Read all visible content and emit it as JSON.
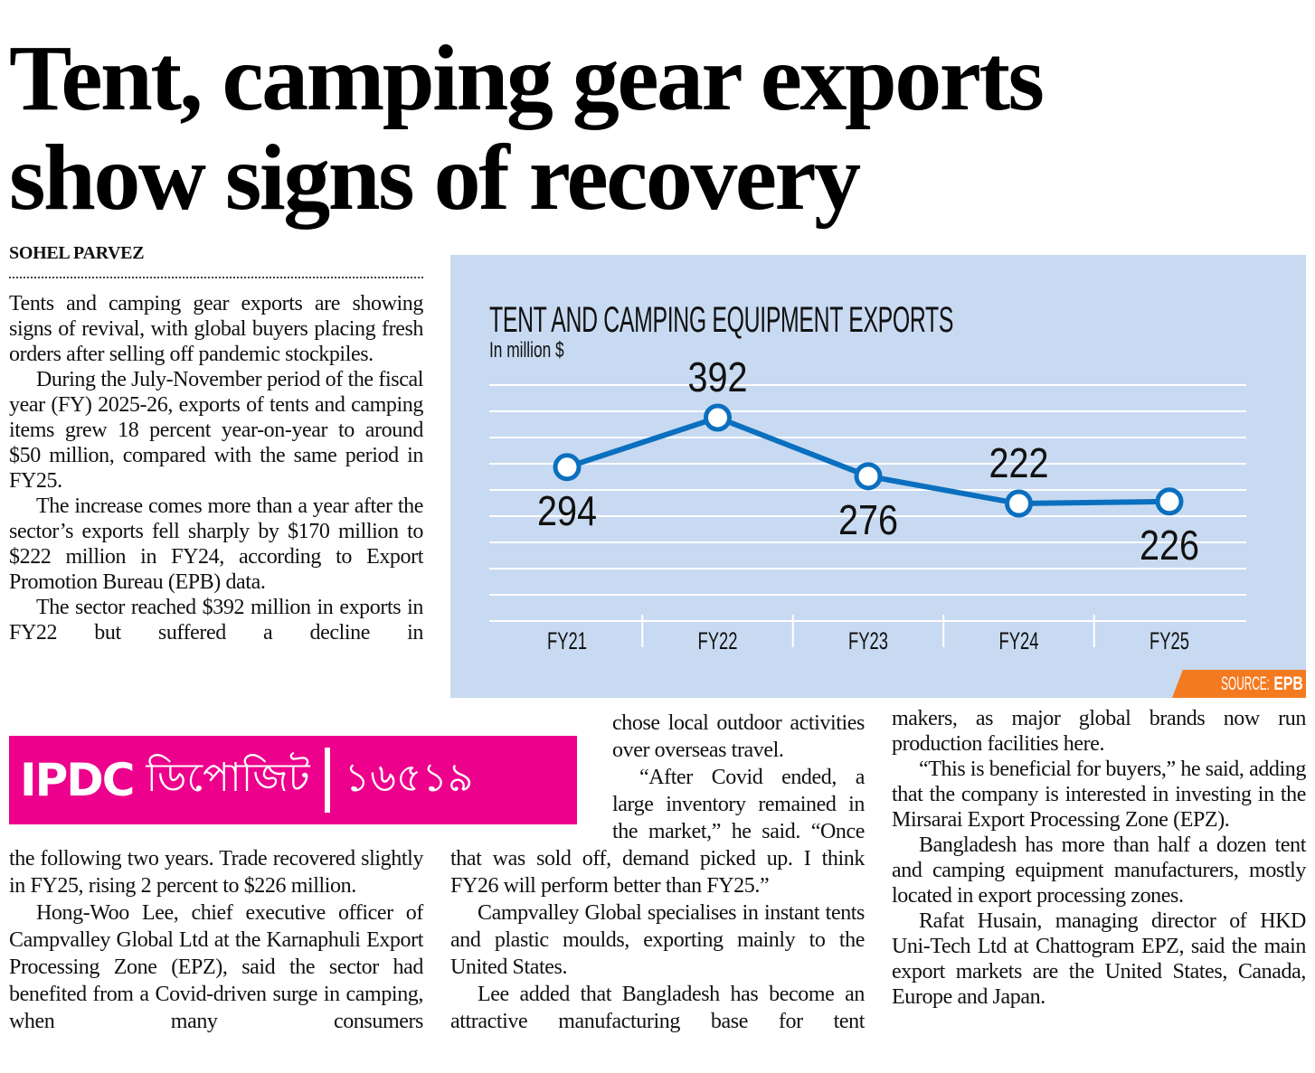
{
  "headline": {
    "line1": "Tent, camping gear exports",
    "line2": "show signs of recovery"
  },
  "byline": "SOHEL PARVEZ",
  "article": {
    "col1_top": [
      "Tents and camping gear exports are showing signs of revival, with global buyers placing fresh orders after selling off pandemic stockpiles.",
      "During the July-November period of the fiscal year (FY) 2025-26, exports of tents and camping items grew 18 percent year-on-year to around $50 million, compared with the same period in FY25.",
      "The increase comes more than a year after the sector’s exports fell sharply by $170 million to $222 million in FY24, according to Export Promotion Bureau (EPB) data.",
      "The sector reached $392 million in exports in FY22 but suffered a decline in"
    ],
    "col1_bottom": [
      "the following two years. Trade recovered slightly in FY25, rising 2 percent to $226 million.",
      "Hong-Woo Lee, chief executive officer of Campvalley Global Ltd at the Karnaphuli Export Processing Zone (EPZ), said the sector had benefited from a Covid-driven surge in camping, when many consumers"
    ],
    "col2": [
      "chose local outdoor activities over overseas travel.",
      "“After Covid ended, a large inventory remained in the market,” he said. “Once that was sold off, demand picked up. I think FY26 will perform better than FY25.”",
      "Campvalley Global specialises in instant tents and plastic moulds, exporting mainly to the United States.",
      "Lee added that Bangladesh has become an attractive manufacturing base for tent"
    ],
    "col3": [
      "makers, as major global brands now run production facilities here.",
      "“This is beneficial for buyers,” he said, adding that the company is interested in investing in the Mirsarai Export Processing Zone (EPZ).",
      "Bangladesh has more than half a dozen tent and camping equipment manufacturers, mostly located in export processing zones.",
      "Rafat Husain, managing director of HKD Uni-Tech Ltd at Chattogram EPZ, said the main export markets are the United States, Canada, Europe and Japan."
    ]
  },
  "ad": {
    "brand": "IPDC",
    "bengali": "ডিপোজিট",
    "number": "১৬৫১৯",
    "color": "#ec008c"
  },
  "chart_data": {
    "type": "line",
    "title": "TENT AND CAMPING EQUIPMENT EXPORTS",
    "subtitle": "In million $",
    "categories": [
      "FY21",
      "FY22",
      "FY23",
      "FY24",
      "FY25"
    ],
    "values": [
      294,
      392,
      276,
      222,
      226
    ],
    "label_pos": [
      "below",
      "above",
      "below",
      "above",
      "below"
    ],
    "source_label": "SOURCE:",
    "source": "EPB",
    "grid": true,
    "line_color": "#0b6fbf",
    "background": "#c8daf1"
  }
}
